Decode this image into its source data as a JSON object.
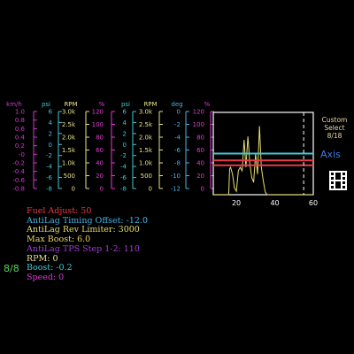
{
  "colors": {
    "background": "#000000",
    "speed": "#d23bd2",
    "boost_psi": "#41c9d3",
    "rpm": "#e9e28a",
    "percent": "#e23cd6",
    "fuel": "#e83a4a",
    "timing": "#45b6e6",
    "limiter": "#e6de6e",
    "max_boost": "#d33de0",
    "tps": "#a13cd0",
    "page": "#5fd35f",
    "axis": "#3f7be8",
    "custom_select": "#f0d8a0"
  },
  "gauges": [
    {
      "unit": "km/h",
      "ticks": [
        "1.0",
        "0.8",
        "0.6",
        "0.4",
        "0.2",
        "-0",
        "-0.2",
        "-0.4",
        "-0.6",
        "-0.8"
      ]
    },
    {
      "unit": "psi",
      "ticks": [
        "6",
        "4",
        "2",
        "0",
        "-2",
        "-4",
        "-6",
        "-8"
      ]
    },
    {
      "unit": "RPM",
      "ticks": [
        "3.0k",
        "2.5k",
        "2.0k",
        "1.5k",
        "1.0k",
        "500",
        "0"
      ]
    },
    {
      "unit": "%",
      "ticks": [
        "120",
        "100",
        "80",
        "60",
        "40",
        "20",
        "0"
      ]
    },
    {
      "unit": "psi",
      "ticks": [
        "6",
        "4",
        "2",
        "0",
        "-2",
        "-4",
        "-6",
        "-8"
      ]
    },
    {
      "unit": "RPM",
      "ticks": [
        "3.0k",
        "2.5k",
        "2.0k",
        "1.5k",
        "1.0k",
        "500",
        "0"
      ]
    },
    {
      "unit": "deg",
      "ticks": [
        "0",
        "-2",
        "-4",
        "-6",
        "-8",
        "-10",
        "-12"
      ]
    },
    {
      "unit": "%",
      "ticks": [
        "120",
        "100",
        "80",
        "60",
        "40",
        "20",
        "0"
      ]
    }
  ],
  "chart_data": {
    "type": "line",
    "x_ticks": [
      "20",
      "40",
      "60"
    ],
    "xlim": [
      8,
      60
    ],
    "y_ticks_left": [
      "120",
      "100",
      "80",
      "60",
      "40",
      "20",
      "0"
    ],
    "cursor_x": 55,
    "series": [
      {
        "color": "#e6de6e",
        "x": [
          8,
          16,
          16.5,
          17,
          18,
          19,
          20,
          21,
          22,
          23,
          24,
          25,
          26,
          27,
          28,
          29,
          30,
          31,
          32,
          33,
          34,
          35,
          36,
          37,
          38,
          40,
          42,
          60
        ],
        "y": [
          0,
          0,
          38,
          40,
          30,
          10,
          5,
          35,
          40,
          35,
          80,
          40,
          85,
          45,
          25,
          18,
          60,
          30,
          100,
          40,
          20,
          4,
          0,
          0,
          0,
          0,
          0,
          0
        ]
      },
      {
        "color": "#e83a4a",
        "x": [
          8,
          60
        ],
        "y": [
          50,
          50
        ]
      },
      {
        "color": "#e83a4a",
        "x": [
          8,
          60
        ],
        "y": [
          43,
          43
        ]
      },
      {
        "color": "#41c9d3",
        "x": [
          8,
          60
        ],
        "y": [
          60,
          60
        ]
      }
    ]
  },
  "stats": [
    {
      "label": "Fuel Adjust: 50",
      "color": "#e83a4a"
    },
    {
      "label": "AntiLag Timing Offset: -12.0",
      "color": "#45b6e6"
    },
    {
      "label": "AntiLag Rev Limiter: 3000",
      "color": "#e6de6e"
    },
    {
      "label": "Max Boost: 6.0",
      "color": "#e8d46a"
    },
    {
      "label": "AntiLag TPS Step 1-2: 110",
      "color": "#a13cd0"
    },
    {
      "label": "RPM: 0",
      "color": "#e9e28a"
    },
    {
      "label": "Boost: -0.2",
      "color": "#41c9d3"
    },
    {
      "label": "Speed: 0",
      "color": "#d23bd2"
    }
  ],
  "side": {
    "custom_select_line1": "Custom",
    "custom_select_line2": "Select",
    "custom_select_line3": "8/18",
    "axis_label": "Axis",
    "film_icon": "film-strip-icon"
  },
  "page_indicator": "8/8"
}
